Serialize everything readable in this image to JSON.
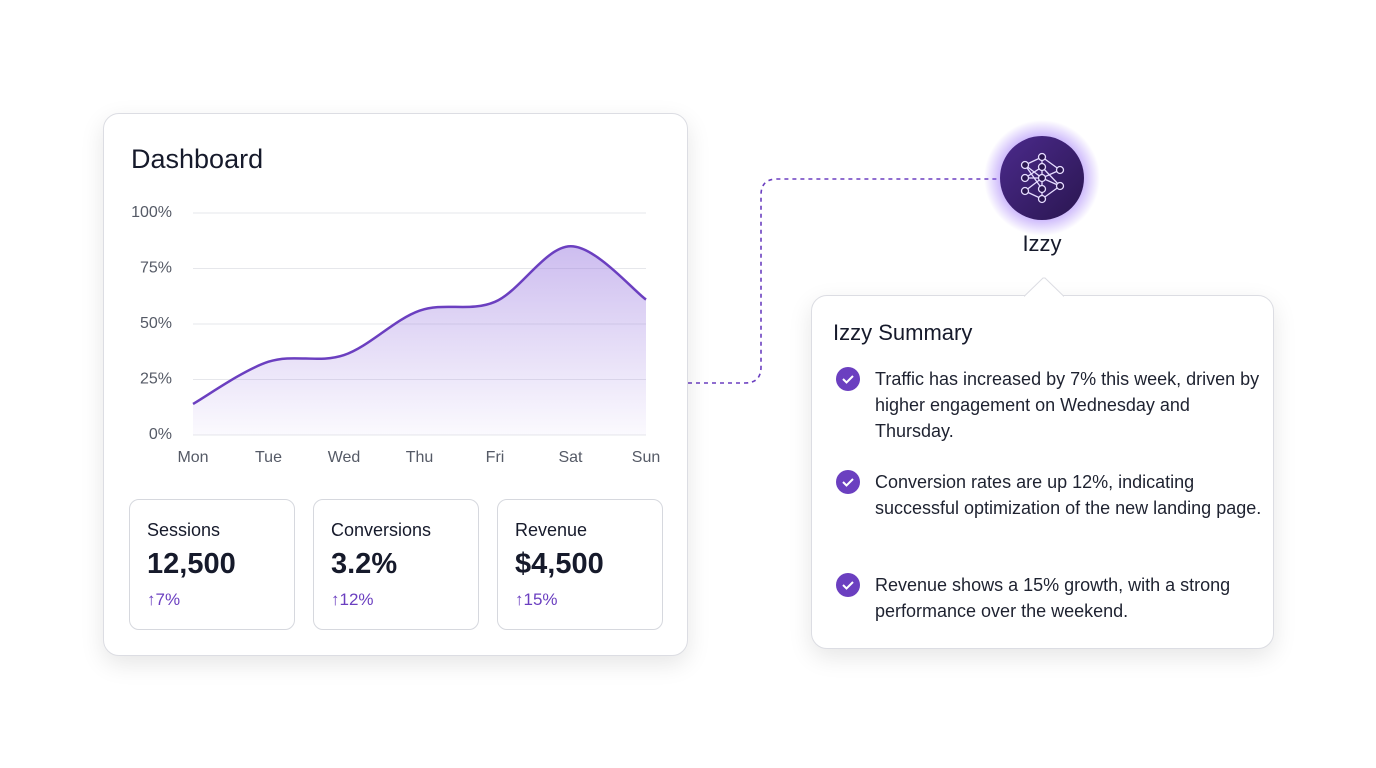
{
  "dashboard": {
    "title": "Dashboard",
    "kpis": [
      {
        "label": "Sessions",
        "value": "12,500",
        "change": "↑7%"
      },
      {
        "label": "Conversions",
        "value": "3.2%",
        "change": "↑12%"
      },
      {
        "label": "Revenue",
        "value": "$4,500",
        "change": "↑15%"
      }
    ]
  },
  "chart_data": {
    "type": "area",
    "categories": [
      "Mon",
      "Tue",
      "Wed",
      "Thu",
      "Fri",
      "Sat",
      "Sun"
    ],
    "values": [
      14,
      33,
      36,
      56,
      60,
      85,
      61
    ],
    "color": "#6b3fc0",
    "ylim": [
      0,
      100
    ],
    "yticks": [
      {
        "value": 0,
        "label": "0%"
      },
      {
        "value": 25,
        "label": "25%"
      },
      {
        "value": 50,
        "label": "50%"
      },
      {
        "value": 75,
        "label": "75%"
      },
      {
        "value": 100,
        "label": "100%"
      }
    ],
    "grid": true
  },
  "assistant": {
    "name": "Izzy",
    "summary_title": "Izzy Summary",
    "items": [
      "Traffic has increased by 7% this week, driven by higher engagement on Wednesday and Thursday.",
      "Conversion rates are up 12%, indicating successful optimization of the new landing page.",
      "Revenue shows a 15% growth, with a strong performance over the weekend."
    ]
  }
}
